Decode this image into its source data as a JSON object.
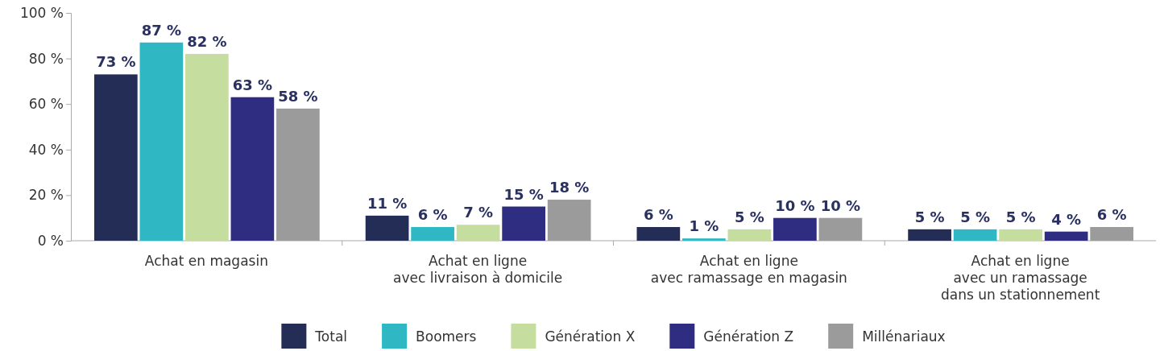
{
  "chart_data": {
    "type": "bar",
    "categories": [
      "Achat en magasin",
      "Achat en ligne\navec livraison à domicile",
      "Achat en ligne\navec ramassage en magasin",
      "Achat en ligne\navec un ramassage\ndans un stationnement"
    ],
    "series": [
      {
        "name": "Total",
        "color": "#232d55",
        "values": [
          73,
          11,
          6,
          5
        ],
        "value_labels": [
          "73 %",
          "11 %",
          "6 %",
          "5 %"
        ]
      },
      {
        "name": "Boomers",
        "color": "#2fb8c4",
        "values": [
          87,
          6,
          1,
          5
        ],
        "value_labels": [
          "87 %",
          "6 %",
          "1 %",
          "5 %"
        ]
      },
      {
        "name": "Génération X",
        "color": "#c5dea0",
        "values": [
          82,
          7,
          5,
          5
        ],
        "value_labels": [
          "82 %",
          "7 %",
          "5 %",
          "5 %"
        ]
      },
      {
        "name": "Génération Z",
        "color": "#2e2d82",
        "values": [
          63,
          15,
          10,
          4
        ],
        "value_labels": [
          "63 %",
          "15 %",
          "10 %",
          "4 %"
        ]
      },
      {
        "name": "Millénariaux",
        "color": "#9b9b9b",
        "values": [
          58,
          18,
          10,
          6
        ],
        "value_labels": [
          "58 %",
          "18 %",
          "10 %",
          "6 %"
        ]
      }
    ],
    "ylim": [
      0,
      100
    ],
    "yticks": [
      {
        "value": 0,
        "label": "0 %"
      },
      {
        "value": 20,
        "label": "20 %"
      },
      {
        "value": 40,
        "label": "40 %"
      },
      {
        "value": 60,
        "label": "60 %"
      },
      {
        "value": 80,
        "label": "80 %"
      },
      {
        "value": 100,
        "label": "100 %"
      }
    ],
    "grid": false,
    "legend": "bottom"
  }
}
